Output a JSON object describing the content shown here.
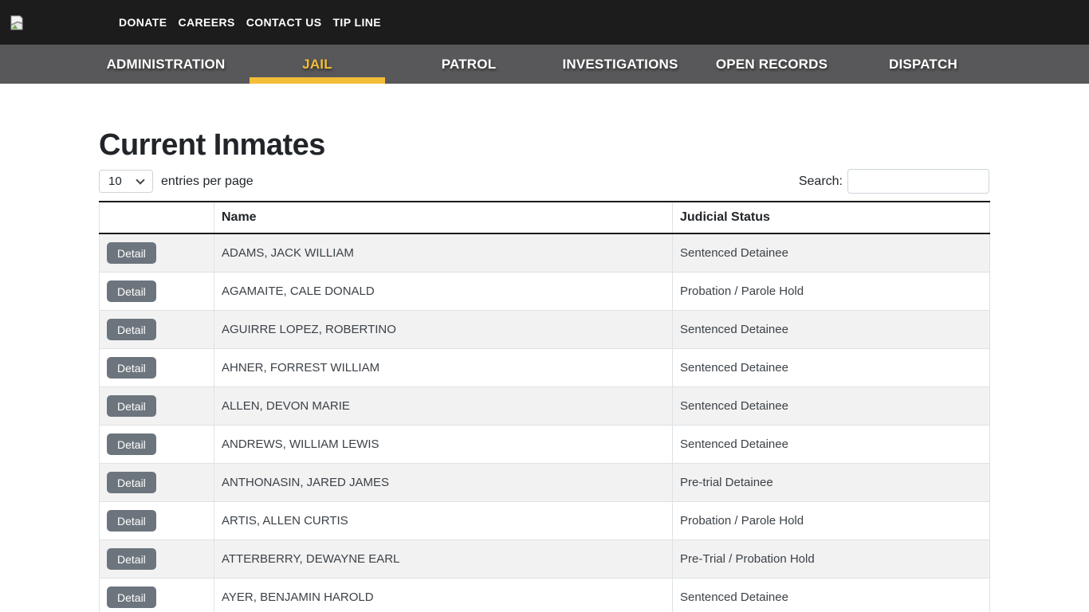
{
  "topbar": {
    "links": [
      {
        "label": "DONATE"
      },
      {
        "label": "CAREERS"
      },
      {
        "label": "CONTACT US"
      },
      {
        "label": "TIP LINE"
      }
    ]
  },
  "nav": {
    "items": [
      {
        "label": "ADMINISTRATION",
        "active": false
      },
      {
        "label": "JAIL",
        "active": true
      },
      {
        "label": "PATROL",
        "active": false
      },
      {
        "label": "INVESTIGATIONS",
        "active": false
      },
      {
        "label": "OPEN RECORDS",
        "active": false
      },
      {
        "label": "DISPATCH",
        "active": false
      }
    ]
  },
  "main": {
    "title": "Current Inmates",
    "entries_per_page": {
      "selected": "10",
      "label": "entries per page"
    },
    "search": {
      "label": "Search:",
      "value": ""
    },
    "table": {
      "columns": [
        "",
        "Name",
        "Judicial Status"
      ],
      "detail_button_label": "Detail",
      "rows": [
        {
          "name": "ADAMS, JACK WILLIAM",
          "judicial_status": "Sentenced Detainee"
        },
        {
          "name": "AGAMAITE, CALE DONALD",
          "judicial_status": "Probation / Parole Hold"
        },
        {
          "name": "AGUIRRE LOPEZ, ROBERTINO",
          "judicial_status": "Sentenced Detainee"
        },
        {
          "name": "AHNER, FORREST WILLIAM",
          "judicial_status": "Sentenced Detainee"
        },
        {
          "name": "ALLEN, DEVON MARIE",
          "judicial_status": "Sentenced Detainee"
        },
        {
          "name": "ANDREWS, WILLIAM LEWIS",
          "judicial_status": "Sentenced Detainee"
        },
        {
          "name": "ANTHONASIN, JARED JAMES",
          "judicial_status": "Pre-trial Detainee"
        },
        {
          "name": "ARTIS, ALLEN CURTIS",
          "judicial_status": "Probation / Parole Hold"
        },
        {
          "name": "ATTERBERRY, DEWAYNE EARL",
          "judicial_status": "Pre-Trial / Probation Hold"
        },
        {
          "name": "AYER, BENJAMIN HAROLD",
          "judicial_status": "Sentenced Detainee"
        }
      ]
    }
  },
  "colors": {
    "accent_yellow": "#f3bd37",
    "topbar_bg": "#1c1c1c",
    "nav_bg": "#58585a",
    "detail_button_gray": "#6c757d",
    "row_stripe": "#f2f2f2"
  }
}
